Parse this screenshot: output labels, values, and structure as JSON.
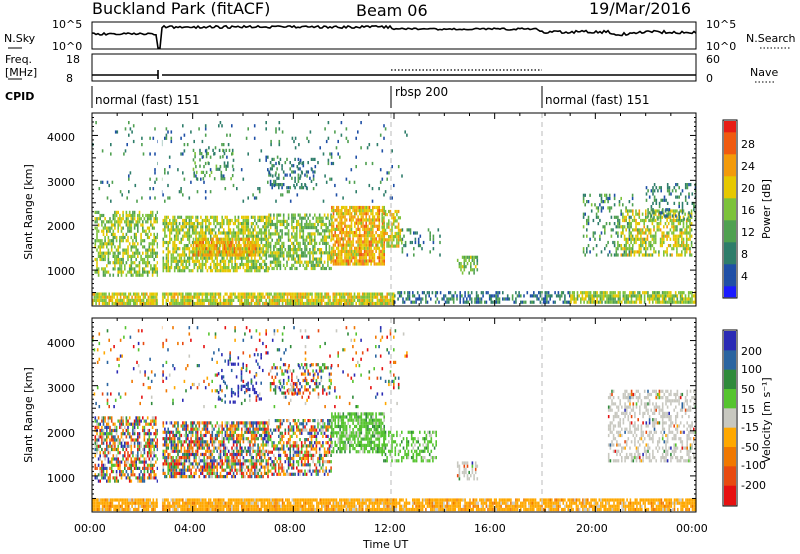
{
  "header": {
    "station": "Buckland Park (fitACF)",
    "beam": "Beam 06",
    "date": "19/Mar/2016"
  },
  "aux_panels": {
    "nsky_label": "N.Sky",
    "nsky_ticks": [
      "10^5",
      "10^0"
    ],
    "nsearch_label": "N.Search",
    "nsearch_ticks": [
      "10^5",
      "10^0"
    ],
    "freq_label": "Freq.",
    "freq_unit": "[MHz]",
    "freq_ticks": [
      "18",
      "8"
    ],
    "nave_label": "Nave",
    "nave_ticks": [
      "60",
      "0"
    ],
    "cpid_label": "CPID",
    "cpid_segments": [
      {
        "start_hour": 0,
        "label": "normal (fast) 151"
      },
      {
        "start_hour": 12,
        "label": "rbsp 200"
      },
      {
        "start_hour": 18,
        "label": "normal (fast) 151"
      }
    ]
  },
  "colors": {
    "power_scale": [
      "#1a1aff",
      "#1f4fa6",
      "#2e7d6a",
      "#4fa050",
      "#7cc23a",
      "#e6c800",
      "#f39a0a",
      "#f05a10",
      "#e81c14"
    ],
    "velocity_scale": [
      "#2a2ab4",
      "#2a64a0",
      "#2f8a3a",
      "#55c42e",
      "#c8c8c0",
      "#ffa800",
      "#f07800",
      "#e84a10",
      "#e61010"
    ],
    "dashed_line": "#bbbbbb"
  },
  "chart_data": [
    {
      "type": "heatmap",
      "panel": "power",
      "xlabel": "",
      "ylabel": "Slant Range [km]",
      "x_range_hours": [
        0,
        24
      ],
      "y_range_km": [
        200,
        4500
      ],
      "y_ticks": [
        "1000",
        "2000",
        "3000",
        "4000"
      ],
      "colorbar_label": "Power [dB]",
      "colorbar_ticks": [
        "4",
        "8",
        "12",
        "16",
        "20",
        "24",
        "28"
      ],
      "colorbar_range": [
        0,
        32
      ],
      "regions": [
        {
          "t0": 0.1,
          "t1": 2.6,
          "r0": 850,
          "r1": 2300,
          "density": 0.55,
          "level": 16
        },
        {
          "t0": 2.8,
          "t1": 7.0,
          "r0": 950,
          "r1": 2150,
          "density": 0.7,
          "level": 17
        },
        {
          "t0": 4.0,
          "t1": 6.5,
          "r0": 1300,
          "r1": 1700,
          "density": 0.8,
          "level": 22
        },
        {
          "t0": 7.0,
          "t1": 9.5,
          "r0": 1000,
          "r1": 2200,
          "density": 0.6,
          "level": 15
        },
        {
          "t0": 9.5,
          "t1": 11.6,
          "r0": 1100,
          "r1": 2400,
          "density": 0.8,
          "level": 22
        },
        {
          "t0": 11.5,
          "t1": 12.3,
          "r0": 1500,
          "r1": 2300,
          "density": 0.6,
          "level": 19
        },
        {
          "t0": 12.3,
          "t1": 13.8,
          "r0": 1300,
          "r1": 1900,
          "density": 0.2,
          "level": 9
        },
        {
          "t0": 14.5,
          "t1": 15.3,
          "r0": 900,
          "r1": 1300,
          "density": 0.5,
          "level": 14
        },
        {
          "t0": 7.0,
          "t1": 9.0,
          "r0": 2800,
          "r1": 3500,
          "density": 0.25,
          "level": 9
        },
        {
          "t0": 4.0,
          "t1": 5.6,
          "r0": 3000,
          "r1": 3700,
          "density": 0.2,
          "level": 11
        },
        {
          "t0": 0.0,
          "t1": 12.5,
          "r0": 2500,
          "r1": 4300,
          "density": 0.05,
          "level": 8
        },
        {
          "t0": 19.5,
          "t1": 21.5,
          "r0": 1300,
          "r1": 2700,
          "density": 0.25,
          "level": 10
        },
        {
          "t0": 21.0,
          "t1": 23.8,
          "r0": 1300,
          "r1": 2300,
          "density": 0.55,
          "level": 18
        },
        {
          "t0": 22.0,
          "t1": 24.0,
          "r0": 2100,
          "r1": 2900,
          "density": 0.3,
          "level": 9
        },
        {
          "t0": 0.0,
          "t1": 12.0,
          "r0": 220,
          "r1": 480,
          "density": 0.85,
          "level": 19
        },
        {
          "t0": 12.0,
          "t1": 19.0,
          "r0": 250,
          "r1": 480,
          "density": 0.45,
          "level": 7
        },
        {
          "t0": 19.0,
          "t1": 24.0,
          "r0": 250,
          "r1": 480,
          "density": 0.75,
          "level": 17
        }
      ]
    },
    {
      "type": "heatmap",
      "panel": "velocity",
      "xlabel": "Time UT",
      "ylabel": "Slant Range [km]",
      "x_range_hours": [
        0,
        24
      ],
      "y_range_km": [
        200,
        4500
      ],
      "x_ticks": [
        "00:00",
        "04:00",
        "08:00",
        "12:00",
        "16:00",
        "20:00",
        "00:00"
      ],
      "y_ticks": [
        "1000",
        "2000",
        "3000",
        "4000"
      ],
      "colorbar_label": "Velocity [m s⁻¹]",
      "colorbar_ticks": [
        "200",
        "100",
        "50",
        "15",
        "-15",
        "-50",
        "-100",
        "-200"
      ],
      "colorbar_range": [
        -250,
        250
      ],
      "regions": [
        {
          "t0": 0.1,
          "t1": 2.6,
          "r0": 850,
          "r1": 2300,
          "density": 0.6,
          "mode": "mixed"
        },
        {
          "t0": 2.8,
          "t1": 7.0,
          "r0": 950,
          "r1": 2150,
          "density": 0.7,
          "mode": "mixed"
        },
        {
          "t0": 7.0,
          "t1": 9.5,
          "r0": 1000,
          "r1": 2200,
          "density": 0.55,
          "mode": "mixed"
        },
        {
          "t0": 9.5,
          "t1": 11.6,
          "r0": 1500,
          "r1": 2400,
          "density": 0.7,
          "mode": "green"
        },
        {
          "t0": 11.5,
          "t1": 13.7,
          "r0": 1300,
          "r1": 2000,
          "density": 0.45,
          "mode": "green"
        },
        {
          "t0": 14.5,
          "t1": 15.3,
          "r0": 900,
          "r1": 1300,
          "density": 0.5,
          "mode": "gray"
        },
        {
          "t0": 5.0,
          "t1": 6.8,
          "r0": 2600,
          "r1": 3700,
          "density": 0.15,
          "mode": "blue"
        },
        {
          "t0": 7.0,
          "t1": 9.5,
          "r0": 2800,
          "r1": 3500,
          "density": 0.35,
          "mode": "mixed"
        },
        {
          "t0": 0.0,
          "t1": 12.5,
          "r0": 2500,
          "r1": 4300,
          "density": 0.06,
          "mode": "mixed"
        },
        {
          "t0": 20.5,
          "t1": 24.0,
          "r0": 1300,
          "r1": 2900,
          "density": 0.45,
          "mode": "gray"
        },
        {
          "t0": 0.0,
          "t1": 12.0,
          "r0": 220,
          "r1": 480,
          "density": 0.9,
          "mode": "orange"
        },
        {
          "t0": 12.0,
          "t1": 24.0,
          "r0": 220,
          "r1": 480,
          "density": 0.85,
          "mode": "orange"
        }
      ]
    }
  ]
}
